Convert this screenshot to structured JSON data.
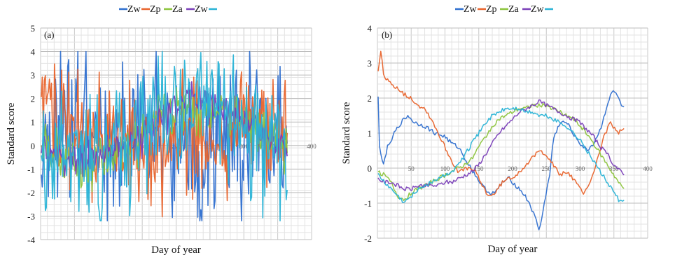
{
  "chart_data": [
    {
      "type": "line",
      "panel_label": "(a)",
      "xlabel": "Day of year",
      "ylabel": "Standard score",
      "xlim": [
        0,
        400
      ],
      "ylim": [
        -4,
        5
      ],
      "x_ticks": [
        50,
        100,
        150,
        200,
        250,
        300,
        350,
        400
      ],
      "y_ticks": [
        -4,
        -3,
        -2,
        -1,
        0,
        1,
        2,
        3,
        4,
        5
      ],
      "grid": true,
      "legend_position": "top",
      "series": [
        {
          "name": "Zw",
          "color": "#2f6fcf",
          "style": "noisy",
          "x": [
            1,
            15,
            30,
            45,
            60,
            75,
            90,
            105,
            120,
            135,
            150,
            165,
            180,
            195,
            210,
            225,
            240,
            255,
            270,
            285,
            300,
            315,
            330,
            345,
            360
          ],
          "y": [
            0.8,
            0.3,
            0.5,
            0.6,
            0.4,
            0.2,
            0.5,
            0.6,
            0.3,
            0.5,
            0.7,
            0.4,
            0.1,
            -0.2,
            -0.5,
            -0.6,
            -0.4,
            -0.3,
            0.1,
            0.4,
            0.6,
            0.8,
            0.6,
            0.4,
            0.3
          ],
          "amp": 1.6
        },
        {
          "name": "Zp",
          "color": "#e8632b",
          "style": "noisy",
          "x": [
            1,
            15,
            30,
            45,
            60,
            75,
            90,
            105,
            120,
            135,
            150,
            165,
            180,
            195,
            210,
            225,
            240,
            255,
            270,
            285,
            300,
            315,
            330,
            345,
            360
          ],
          "y": [
            1.5,
            1.2,
            0.9,
            0.6,
            0.4,
            0.3,
            0.2,
            0.2,
            0.1,
            0.0,
            -0.1,
            -0.2,
            -0.3,
            0.0,
            0.3,
            0.4,
            0.2,
            0.0,
            0.1,
            0.3,
            0.5,
            0.7,
            0.8,
            1.0,
            1.0
          ],
          "amp": 1.2
        },
        {
          "name": "Za",
          "color": "#8cc43c",
          "style": "noisy",
          "x": [
            1,
            15,
            30,
            45,
            60,
            75,
            90,
            105,
            120,
            135,
            150,
            165,
            180,
            195,
            210,
            225,
            240,
            255,
            270,
            285,
            300,
            315,
            330,
            345,
            360
          ],
          "y": [
            -0.1,
            -0.3,
            -0.5,
            -0.7,
            -0.8,
            -0.6,
            -0.4,
            -0.3,
            -0.2,
            0.1,
            0.5,
            0.9,
            1.3,
            1.5,
            1.6,
            1.6,
            1.5,
            1.5,
            1.4,
            1.3,
            1.1,
            0.9,
            0.6,
            0.3,
            0.0
          ],
          "amp": 0.5
        },
        {
          "name": "Zw",
          "color": "#7a3fb8",
          "style": "noisy",
          "x": [
            1,
            15,
            30,
            45,
            60,
            75,
            90,
            105,
            120,
            135,
            150,
            165,
            180,
            195,
            210,
            225,
            240,
            255,
            270,
            285,
            300,
            315,
            330,
            345,
            360
          ],
          "y": [
            -0.3,
            -0.4,
            -0.5,
            -0.6,
            -0.6,
            -0.5,
            -0.4,
            -0.3,
            -0.2,
            0.0,
            0.4,
            0.8,
            1.2,
            1.6,
            1.9,
            2.0,
            1.9,
            1.8,
            1.6,
            1.4,
            1.1,
            0.8,
            0.5,
            0.2,
            -0.1
          ],
          "amp": 0.4
        },
        {
          "name": "",
          "color": "#29b3d6",
          "style": "noisy",
          "x": [
            1,
            15,
            30,
            45,
            60,
            75,
            90,
            105,
            120,
            135,
            150,
            165,
            180,
            195,
            210,
            225,
            240,
            255,
            270,
            285,
            300,
            315,
            330,
            345,
            360
          ],
          "y": [
            0.0,
            -0.2,
            -0.4,
            -0.6,
            -0.7,
            -0.6,
            -0.4,
            -0.2,
            0.0,
            0.4,
            0.9,
            1.3,
            1.6,
            1.7,
            1.7,
            1.6,
            1.5,
            1.5,
            1.4,
            1.3,
            1.1,
            0.8,
            0.4,
            0.0,
            -0.4
          ],
          "amp": 1.3
        }
      ]
    },
    {
      "type": "line",
      "panel_label": "(b)",
      "xlabel": "Day of year",
      "ylabel": "Standard score",
      "xlim": [
        0,
        400
      ],
      "ylim": [
        -2,
        4
      ],
      "x_ticks": [
        50,
        100,
        150,
        200,
        250,
        300,
        350,
        400
      ],
      "y_ticks": [
        -2,
        -1,
        0,
        1,
        2,
        3,
        4
      ],
      "grid": true,
      "legend_position": "top",
      "series": [
        {
          "name": "Zw",
          "color": "#2f6fcf",
          "style": "smooth",
          "x": [
            1,
            3,
            8,
            15,
            25,
            35,
            45,
            55,
            70,
            85,
            100,
            110,
            120,
            135,
            145,
            155,
            165,
            175,
            185,
            195,
            205,
            215,
            225,
            235,
            240,
            245,
            255,
            260,
            270,
            280,
            290,
            300,
            310,
            320,
            330,
            340,
            348,
            355,
            360,
            365
          ],
          "y": [
            2.1,
            0.6,
            0.1,
            0.6,
            1.0,
            1.3,
            1.5,
            1.3,
            1.2,
            1.0,
            0.9,
            0.7,
            0.6,
            0.1,
            -0.2,
            -0.5,
            -0.7,
            -0.7,
            -0.4,
            -0.3,
            -0.5,
            -0.7,
            -1.0,
            -1.5,
            -1.8,
            -1.2,
            -0.2,
            0.8,
            1.3,
            1.3,
            1.0,
            0.7,
            0.5,
            0.7,
            1.1,
            1.8,
            2.2,
            2.1,
            1.8,
            1.7
          ]
        },
        {
          "name": "Zp",
          "color": "#e8632b",
          "style": "smooth",
          "x": [
            1,
            5,
            10,
            20,
            30,
            40,
            50,
            60,
            70,
            80,
            90,
            100,
            110,
            120,
            135,
            145,
            155,
            165,
            175,
            185,
            195,
            205,
            215,
            230,
            240,
            250,
            260,
            270,
            280,
            290,
            300,
            305,
            315,
            325,
            335,
            345,
            355,
            365
          ],
          "y": [
            2.8,
            3.3,
            2.6,
            2.4,
            2.3,
            2.1,
            2.0,
            1.8,
            1.7,
            1.4,
            1.0,
            0.6,
            0.2,
            -0.1,
            0.0,
            -0.1,
            -0.5,
            -0.8,
            -0.7,
            -0.4,
            -0.3,
            -0.2,
            0.0,
            0.3,
            0.5,
            0.4,
            0.1,
            -0.2,
            -0.1,
            -0.3,
            -0.6,
            -0.7,
            -0.4,
            0.2,
            0.9,
            1.3,
            1.0,
            1.1
          ]
        },
        {
          "name": "Za",
          "color": "#8cc43c",
          "style": "smooth",
          "x": [
            1,
            10,
            20,
            30,
            40,
            50,
            60,
            70,
            80,
            90,
            100,
            110,
            120,
            130,
            140,
            150,
            160,
            170,
            180,
            190,
            200,
            210,
            220,
            230,
            240,
            250,
            260,
            270,
            280,
            290,
            300,
            310,
            320,
            330,
            340,
            350,
            360,
            365
          ],
          "y": [
            -0.1,
            -0.2,
            -0.4,
            -0.8,
            -0.9,
            -0.7,
            -0.6,
            -0.5,
            -0.4,
            -0.3,
            -0.2,
            -0.1,
            0.0,
            0.1,
            0.3,
            0.6,
            0.9,
            1.2,
            1.4,
            1.5,
            1.6,
            1.7,
            1.7,
            1.8,
            1.8,
            1.8,
            1.7,
            1.6,
            1.5,
            1.4,
            1.2,
            1.0,
            0.7,
            0.4,
            0.1,
            -0.2,
            -0.5,
            -0.6
          ]
        },
        {
          "name": "Zw",
          "color": "#7a3fb8",
          "style": "smooth",
          "x": [
            1,
            10,
            20,
            30,
            40,
            50,
            60,
            70,
            80,
            90,
            100,
            110,
            120,
            130,
            140,
            150,
            160,
            170,
            180,
            190,
            200,
            210,
            220,
            230,
            240,
            250,
            260,
            270,
            280,
            290,
            300,
            310,
            320,
            330,
            340,
            350,
            360,
            365
          ],
          "y": [
            -0.3,
            -0.4,
            -0.4,
            -0.5,
            -0.6,
            -0.6,
            -0.5,
            -0.5,
            -0.5,
            -0.5,
            -0.4,
            -0.4,
            -0.3,
            -0.2,
            -0.1,
            0.1,
            0.4,
            0.7,
            1.0,
            1.2,
            1.4,
            1.6,
            1.7,
            1.8,
            1.9,
            1.8,
            1.7,
            1.6,
            1.5,
            1.4,
            1.3,
            1.1,
            0.9,
            0.6,
            0.4,
            0.1,
            -0.1,
            -0.2
          ]
        },
        {
          "name": "",
          "color": "#29b3d6",
          "style": "smooth",
          "x": [
            1,
            10,
            20,
            30,
            40,
            50,
            60,
            70,
            80,
            90,
            100,
            110,
            120,
            130,
            140,
            150,
            160,
            170,
            180,
            190,
            200,
            210,
            220,
            230,
            240,
            250,
            260,
            270,
            280,
            290,
            300,
            310,
            320,
            330,
            340,
            350,
            360,
            365
          ],
          "y": [
            -0.2,
            -0.4,
            -0.6,
            -0.8,
            -1.0,
            -0.8,
            -0.6,
            -0.5,
            -0.4,
            -0.3,
            -0.2,
            -0.1,
            0.1,
            0.4,
            0.7,
            1.0,
            1.3,
            1.5,
            1.6,
            1.7,
            1.7,
            1.7,
            1.6,
            1.6,
            1.5,
            1.5,
            1.4,
            1.3,
            1.2,
            1.0,
            0.8,
            0.5,
            0.2,
            -0.1,
            -0.4,
            -0.7,
            -1.0,
            -0.9
          ]
        }
      ]
    }
  ],
  "legends": [
    {
      "items": [
        {
          "label": "Zw",
          "color": "#2f6fcf"
        },
        {
          "label": "Zp",
          "color": "#e8632b"
        },
        {
          "label": "Za",
          "color": "#8cc43c"
        },
        {
          "label": "Zw",
          "color": "#7a3fb8"
        },
        {
          "label": "",
          "color": "#29b3d6"
        }
      ]
    },
    {
      "items": [
        {
          "label": "Zw",
          "color": "#2f6fcf"
        },
        {
          "label": "Zp",
          "color": "#e8632b"
        },
        {
          "label": "Za",
          "color": "#8cc43c"
        },
        {
          "label": "Zw",
          "color": "#7a3fb8"
        },
        {
          "label": "",
          "color": "#29b3d6"
        }
      ]
    }
  ]
}
